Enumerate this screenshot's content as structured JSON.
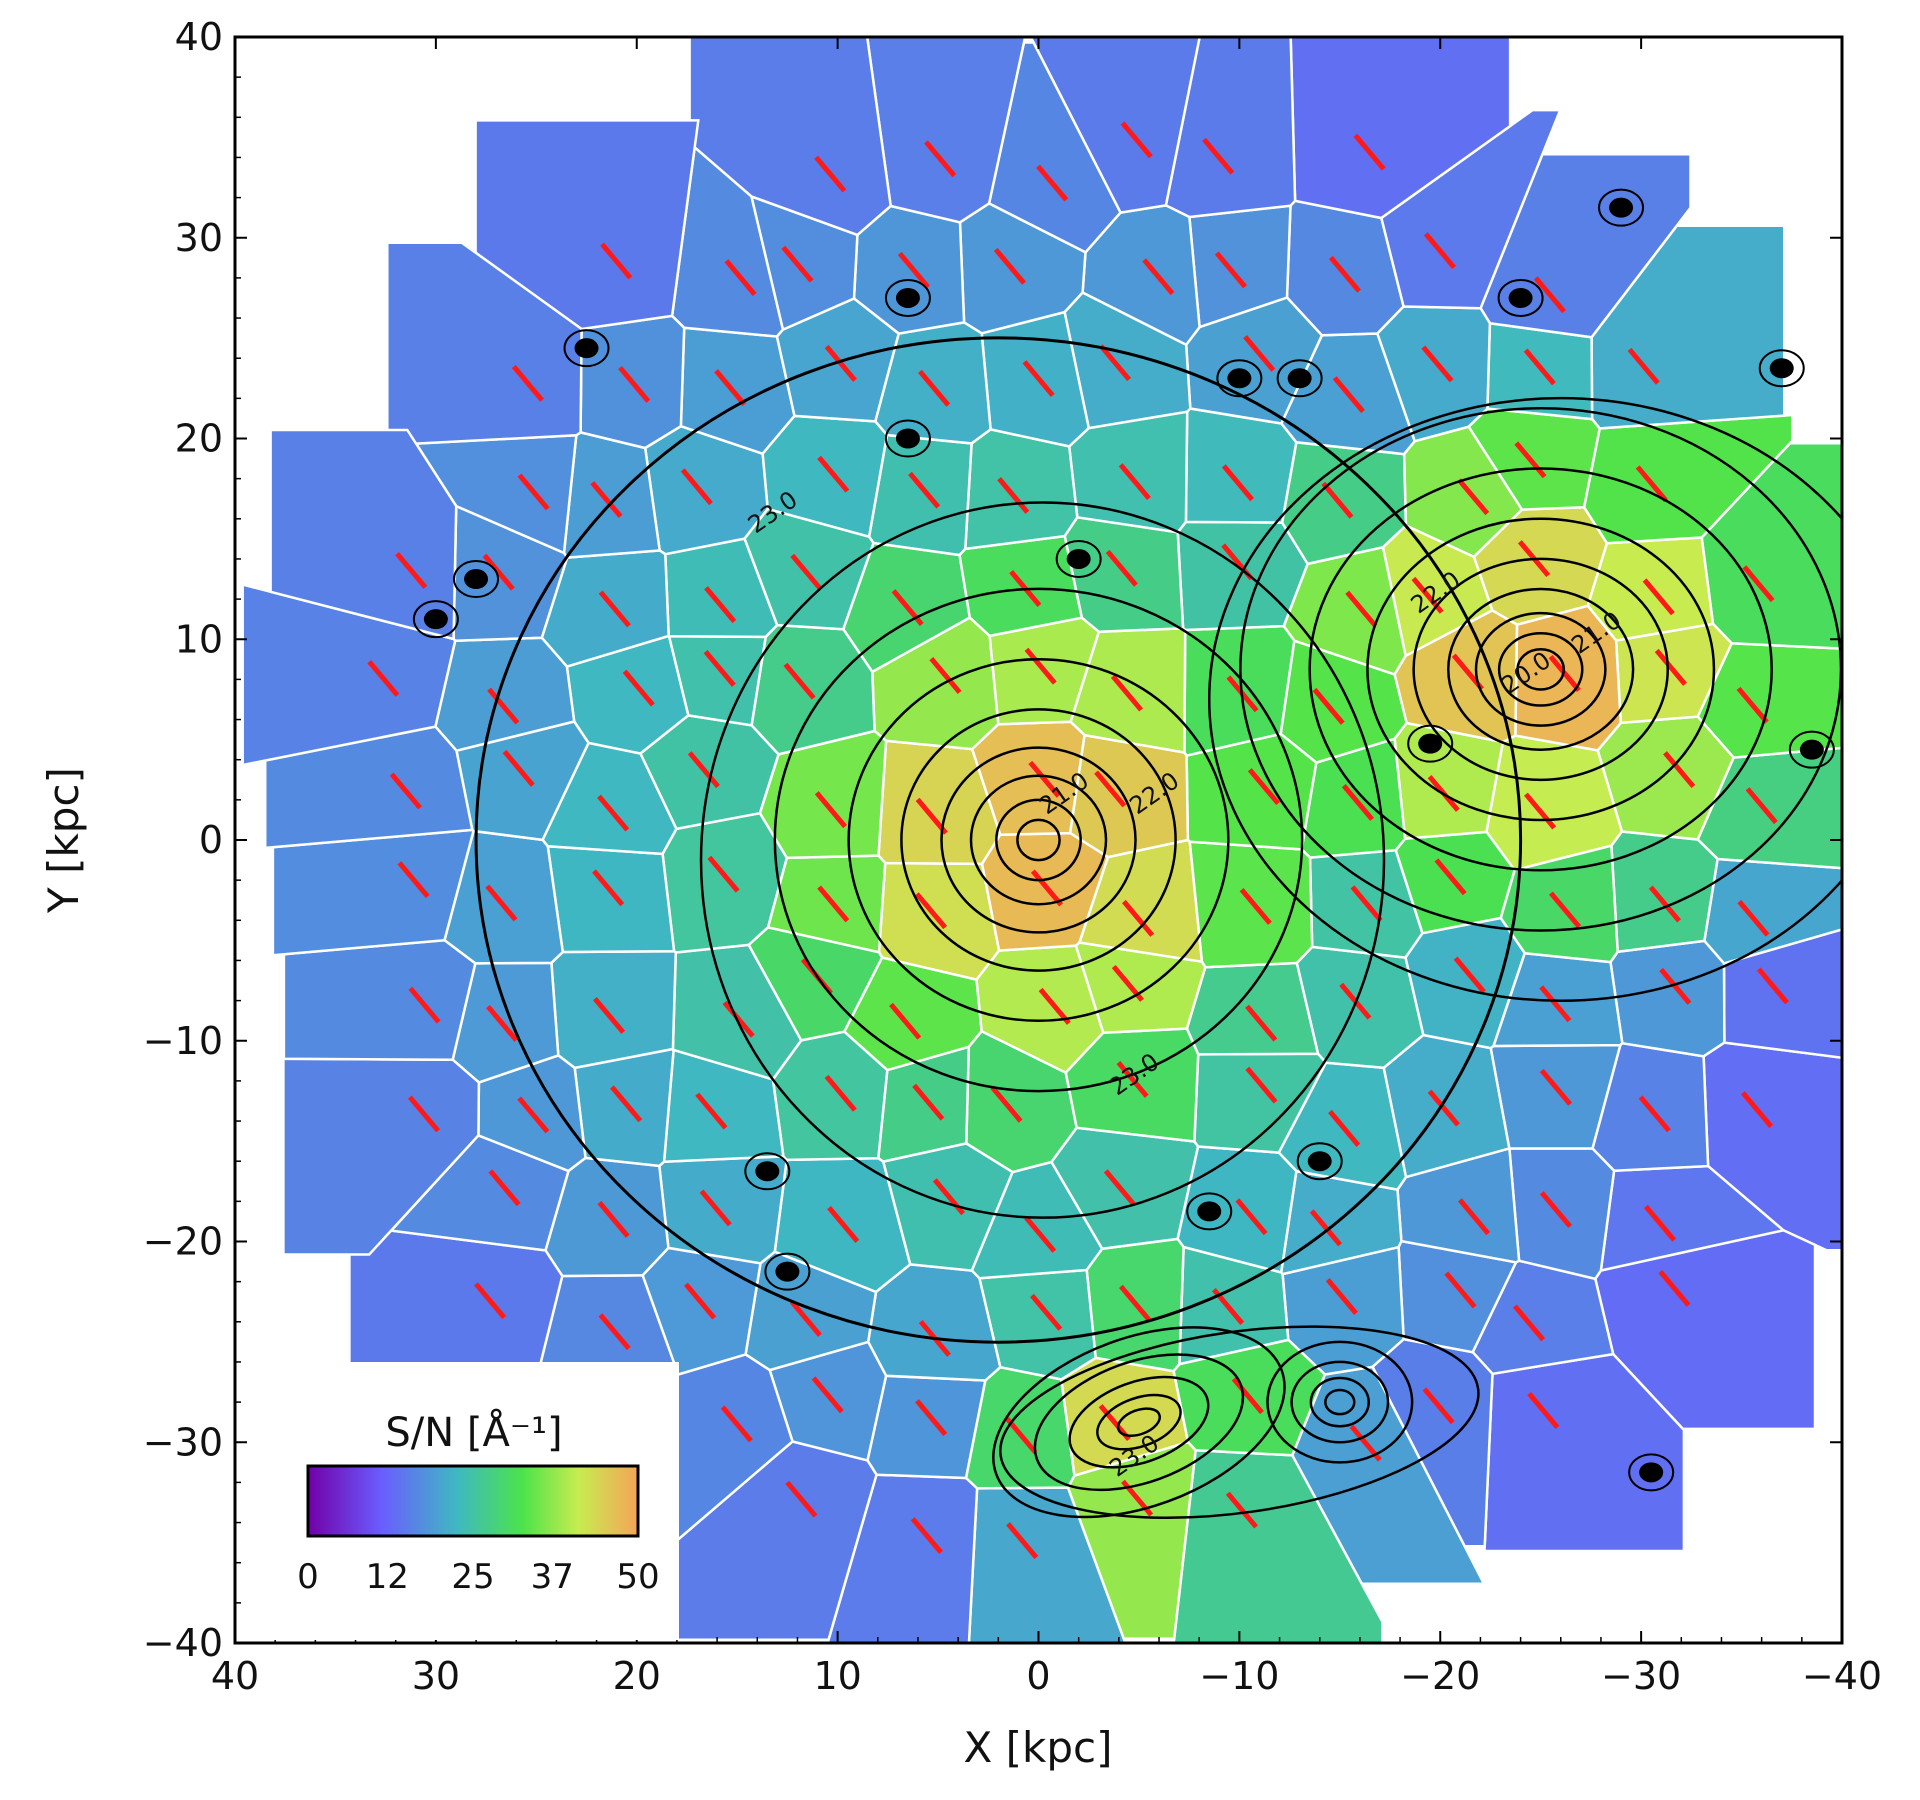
{
  "chart_data": {
    "type": "heatmap",
    "subtype": "voronoi-binned map with isophote contours and orientation sticks",
    "xlabel": "X [kpc]",
    "ylabel": "Y [kpc]",
    "xlim": [
      40,
      -40
    ],
    "ylim": [
      -40,
      40
    ],
    "x_ticks": [
      40,
      30,
      20,
      10,
      0,
      -10,
      -20,
      -30,
      -40
    ],
    "x_tick_labels": [
      "40",
      "30",
      "20",
      "10",
      "0",
      "−10",
      "−20",
      "−30",
      "−40"
    ],
    "y_ticks": [
      40,
      30,
      20,
      10,
      0,
      -10,
      -20,
      -30,
      -40
    ],
    "y_tick_labels": [
      "40",
      "30",
      "20",
      "10",
      "0",
      "−10",
      "−20",
      "−30",
      "−40"
    ],
    "grid": false,
    "colorbar": {
      "title": "S/N [Å⁻¹]",
      "range": [
        0,
        50
      ],
      "ticks": [
        0,
        12,
        25,
        37,
        50
      ],
      "tick_labels": [
        "0",
        "12",
        "25",
        "37",
        "50"
      ],
      "colormap": "rainbow (purple-blue-teal-green-yellow-orange)",
      "colormap_stops": [
        "#7100a8",
        "#6a5cff",
        "#3fb8c2",
        "#4ce34a",
        "#c7ec50",
        "#f5a458"
      ],
      "placement": "lower-left inset"
    },
    "galaxies": [
      {
        "x": 0,
        "y": 0,
        "peak_sn": 48,
        "radius": 14
      },
      {
        "x": -25,
        "y": 8.5,
        "peak_sn": 48,
        "radius": 13
      },
      {
        "x": -5,
        "y": -29,
        "peak_sn": 44,
        "radius": 7
      },
      {
        "x": -15,
        "y": -28,
        "peak_sn": 22,
        "radius": 5
      }
    ],
    "contours": [
      {
        "level": 20.0,
        "label": "20.0",
        "label_x": -24.5,
        "label_y": 8
      },
      {
        "level": 21.0,
        "label": "21.0",
        "label_x": -1.5,
        "label_y": 2
      },
      {
        "level": 21.0,
        "label": "21.0",
        "label_x": -28,
        "label_y": 10
      },
      {
        "level": 22.0,
        "label": "22.0",
        "label_x": -6,
        "label_y": 2
      },
      {
        "level": 22.0,
        "label": "22.0",
        "label_x": -20,
        "label_y": 12
      },
      {
        "level": 23.0,
        "label": "23.0",
        "label_x": -5,
        "label_y": -12
      },
      {
        "level": 23.0,
        "label": "23.0",
        "label_x": 13,
        "label_y": 16
      },
      {
        "level": 23.0,
        "label": "23.0",
        "label_x": -5,
        "label_y": -31
      }
    ],
    "stick_angle_deg": -50,
    "stick_color": "#ff1a1a"
  }
}
